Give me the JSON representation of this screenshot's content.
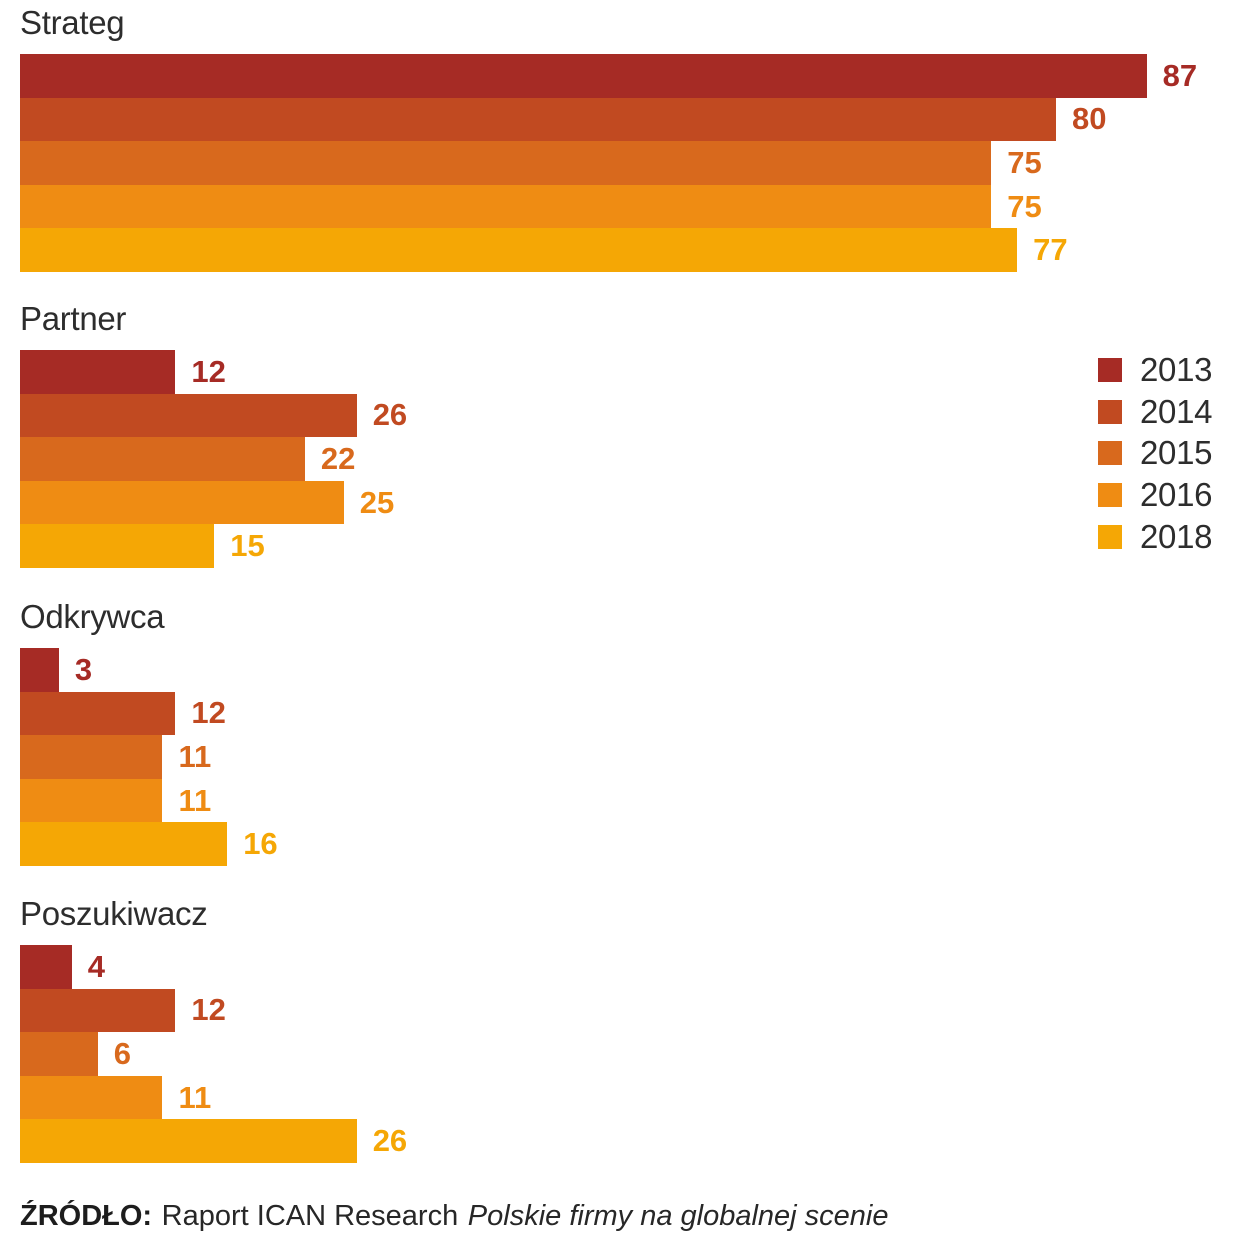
{
  "chart_data": {
    "type": "bar",
    "orientation": "horizontal",
    "value_range": [
      0,
      87
    ],
    "grid": false,
    "legend_position": "right",
    "series": [
      {
        "name": "2013",
        "color": "#a62b25"
      },
      {
        "name": "2014",
        "color": "#c14a21"
      },
      {
        "name": "2015",
        "color": "#d8691d"
      },
      {
        "name": "2016",
        "color": "#ef8c13"
      },
      {
        "name": "2018",
        "color": "#f5a705"
      }
    ],
    "groups": [
      {
        "label": "Strateg",
        "values": [
          87,
          80,
          75,
          75,
          77
        ]
      },
      {
        "label": "Partner",
        "values": [
          12,
          26,
          22,
          25,
          15
        ]
      },
      {
        "label": "Odkrywca",
        "values": [
          3,
          12,
          11,
          11,
          16
        ]
      },
      {
        "label": "Poszukiwacz",
        "values": [
          4,
          12,
          6,
          11,
          26
        ]
      }
    ]
  },
  "source": {
    "label": "ŹRÓDŁO:",
    "text": "Raport ICAN Research",
    "italic": "Polskie firmy na globalnej scenie"
  }
}
